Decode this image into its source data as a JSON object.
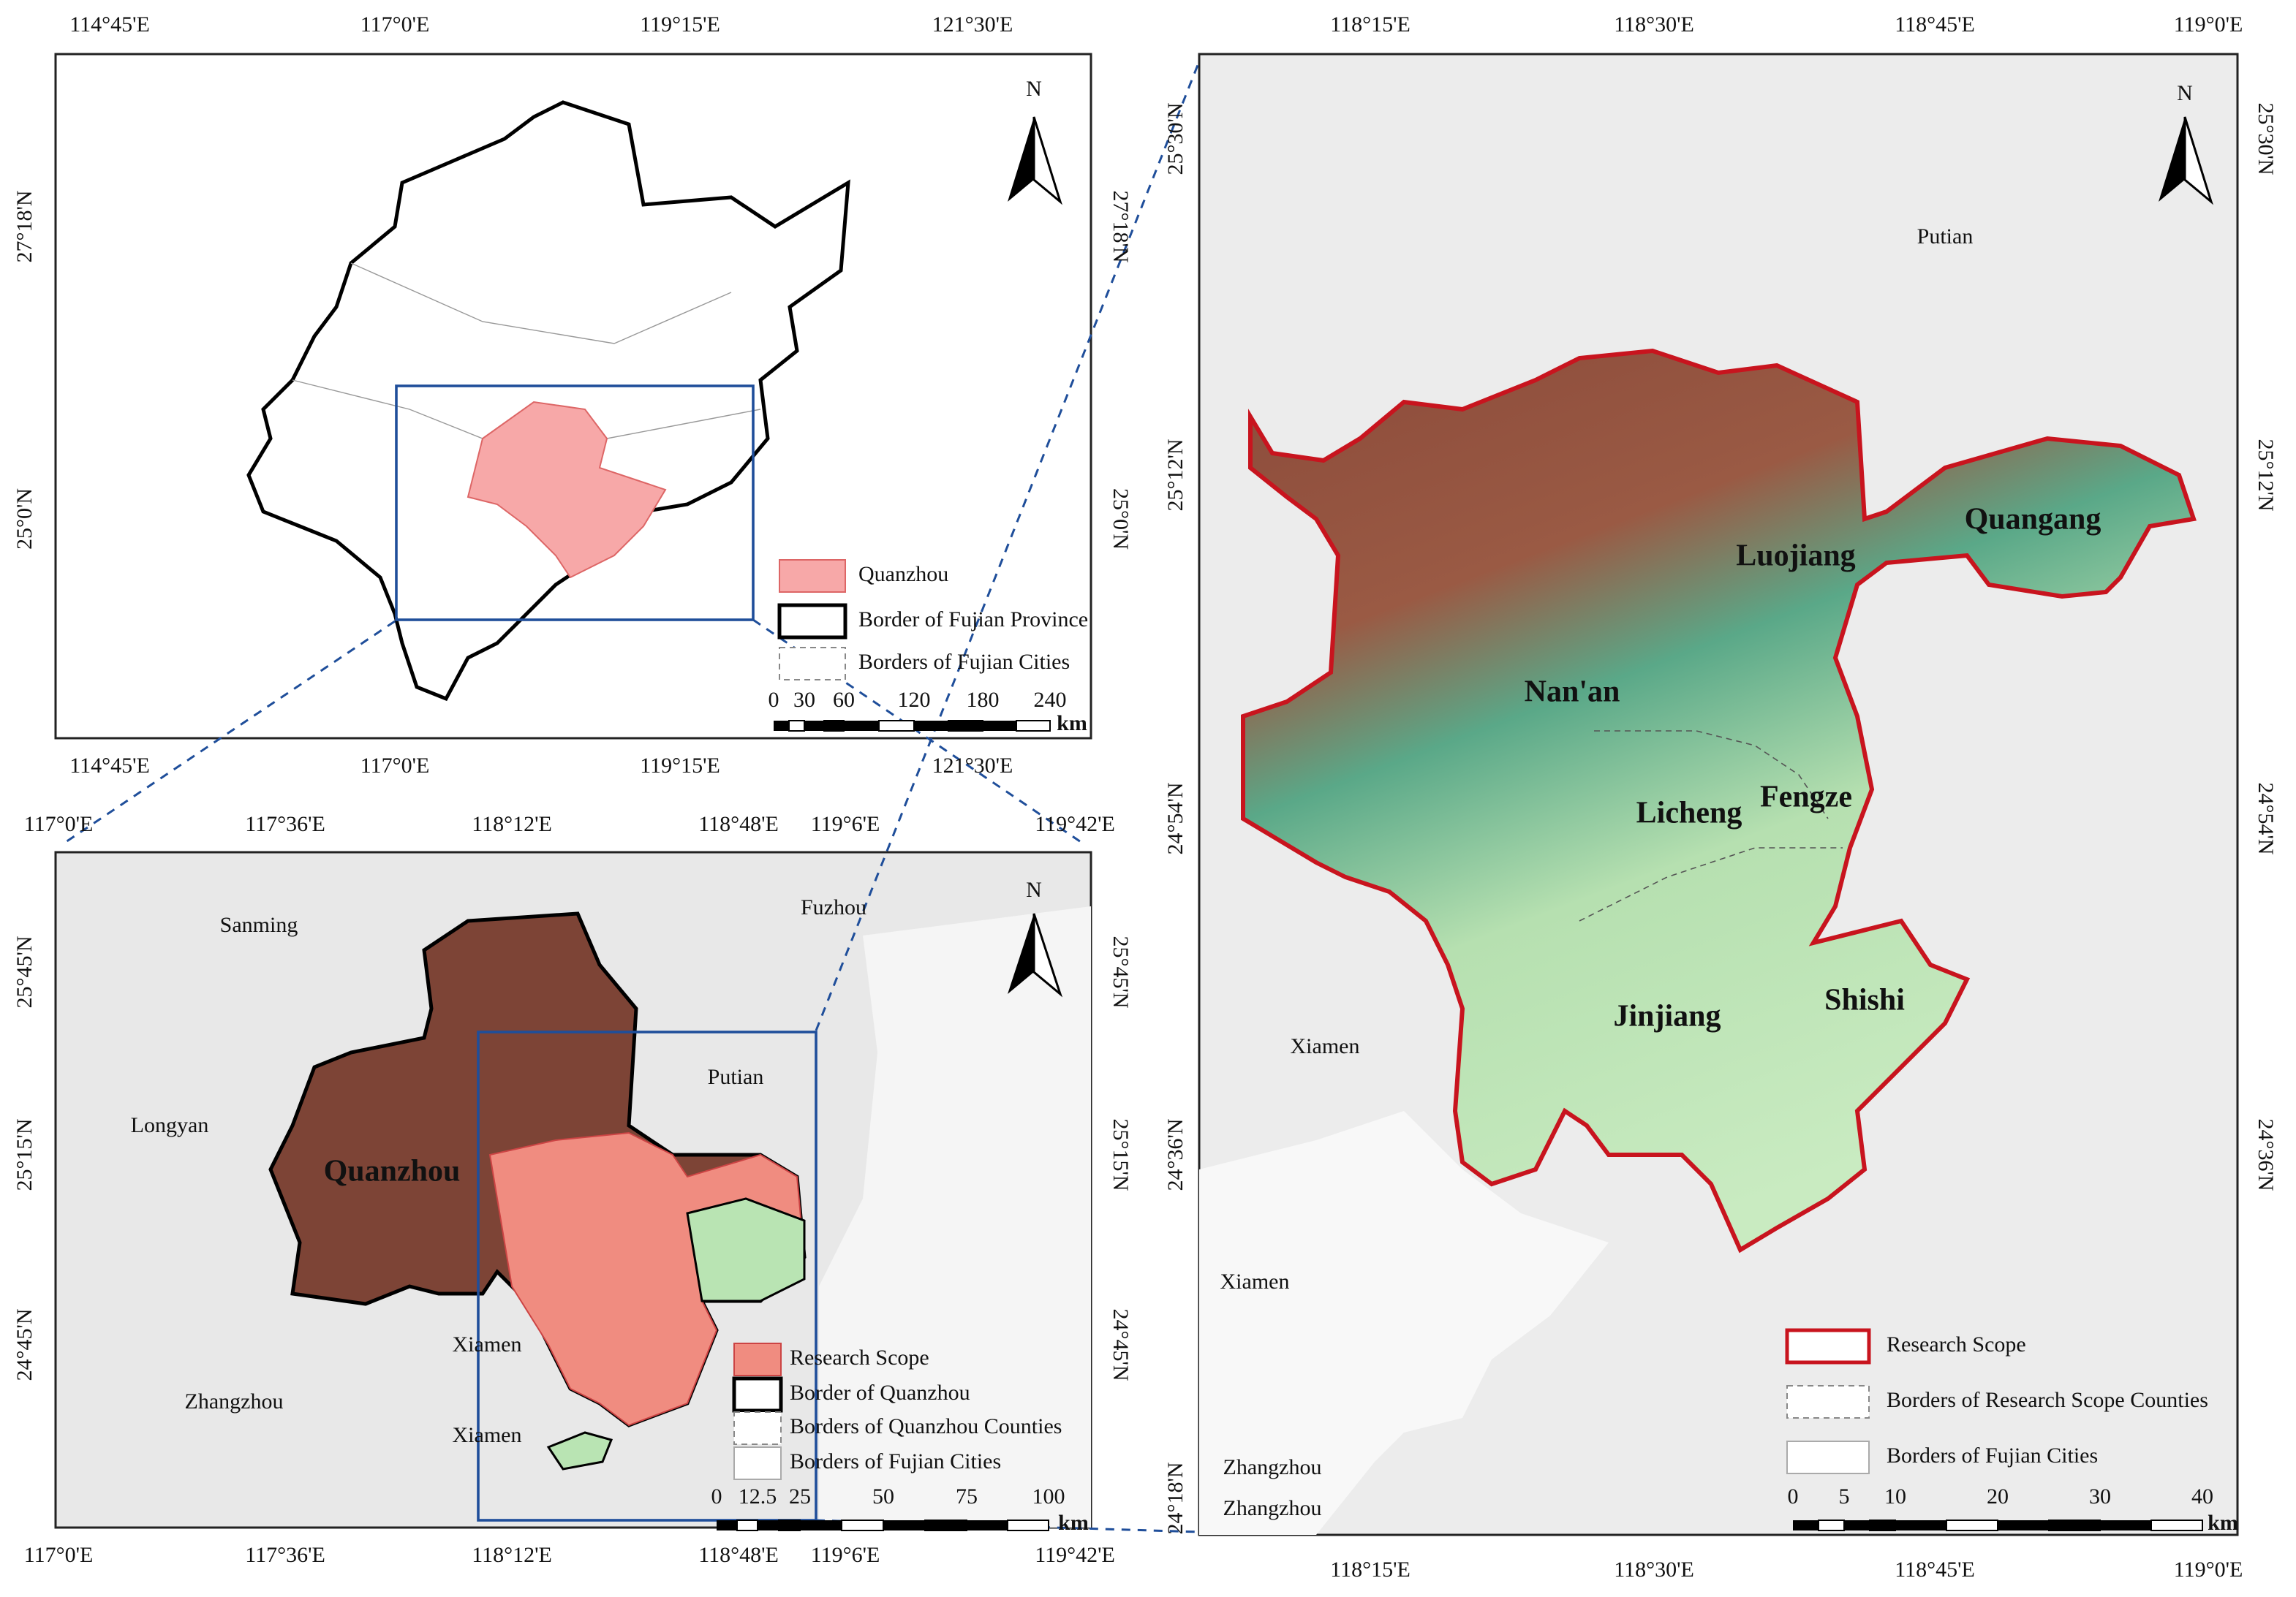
{
  "panels": [
    {
      "axis_labels": {
        "top": [
          "114°45'E",
          "117°0'E",
          "119°15'E",
          "121°30'E"
        ],
        "bottom": [
          "114°45'E",
          "117°0'E",
          "119°15'E",
          "121°30'E"
        ],
        "left": [
          "27°18'N",
          "25°0'N"
        ],
        "right": [
          "27°18'N",
          "25°0'N"
        ]
      },
      "north": "N",
      "places": [],
      "legend": [
        "Quanzhou",
        "Border of Fujian Province",
        "Borders of Fujian Cities"
      ],
      "scale_bar": {
        "labels": [
          "0",
          "30",
          "60",
          "120",
          "180",
          "240"
        ],
        "unit": "km"
      }
    },
    {
      "axis_labels": {
        "top": [
          "117°0'E",
          "117°36'E",
          "118°12'E",
          "118°48'E",
          "119°6'E",
          "119°42'E"
        ],
        "bottom": [
          "117°0'E",
          "117°36'E",
          "118°12'E",
          "118°48'E",
          "119°6'E",
          "119°42'E"
        ],
        "left": [
          "25°45'N",
          "25°15'N",
          "24°45'N"
        ],
        "right": [
          "25°45'N",
          "25°15'N",
          "24°45'N"
        ]
      },
      "north": "N",
      "places": [
        "Sanming",
        "Fuzhou",
        "Longyan",
        "Putian",
        "Quanzhou",
        "Xiamen",
        "Zhangzhou",
        "Xiamen"
      ],
      "legend": [
        "Research Scope",
        "Border of Quanzhou",
        "Borders of Quanzhou Counties",
        "Borders of Fujian Cities"
      ],
      "scale_bar": {
        "labels": [
          "0",
          "12.5",
          "25",
          "50",
          "75",
          "100"
        ],
        "unit": "km"
      }
    },
    {
      "axis_labels": {
        "top": [
          "118°15'E",
          "118°30'E",
          "118°45'E",
          "119°0'E"
        ],
        "bottom": [
          "118°15'E",
          "118°30'E",
          "118°45'E",
          "119°0'E"
        ],
        "left": [
          "25°30'N",
          "25°12'N",
          "24°54'N",
          "24°36'N",
          "24°18'N"
        ],
        "right": [
          "25°30'N",
          "25°12'N",
          "24°54'N",
          "24°36'N"
        ]
      },
      "north": "N",
      "places": [
        "Putian",
        "Quangang",
        "Luojiang",
        "Nan'an",
        "Licheng",
        "Fengze",
        "Jinjiang",
        "Shishi",
        "Xiamen",
        "Xiamen",
        "Zhangzhou",
        "Zhangzhou"
      ],
      "legend": [
        "Research Scope",
        "Borders of Research Scope Counties",
        "Borders of Fujian Cities"
      ],
      "scale_bar": {
        "labels": [
          "0",
          "5",
          "10",
          "20",
          "30",
          "40"
        ],
        "unit": "km"
      }
    }
  ]
}
